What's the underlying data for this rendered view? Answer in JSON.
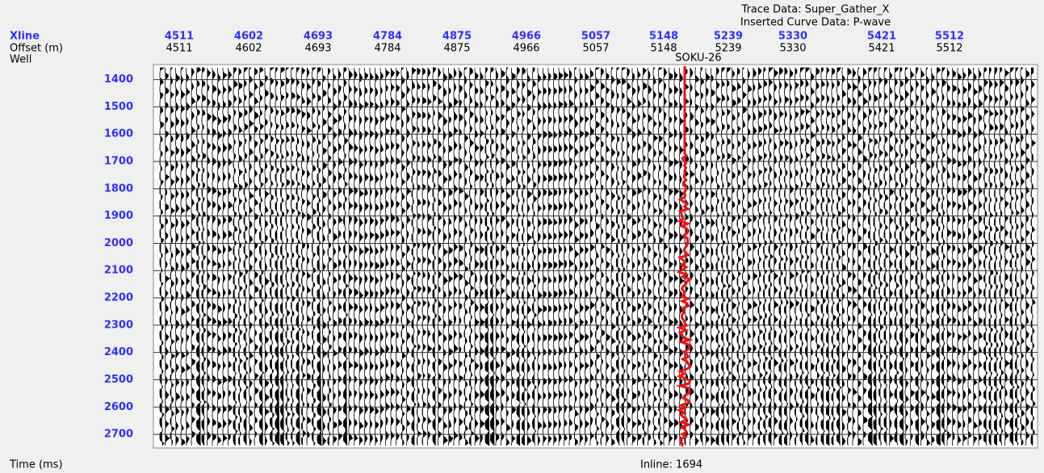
{
  "header": {
    "trace_data": "Trace Data: Super_Gather_X",
    "curve_data": "Inserted Curve Data:  P-wave"
  },
  "axes": {
    "xline_label": "Xline",
    "offset_label": "Offset (m)",
    "well_label": "Well",
    "xline_values": [
      4511,
      4602,
      4693,
      4784,
      4875,
      4966,
      5057,
      5148,
      5239,
      5330,
      5421,
      5512
    ],
    "offset_values": [
      4511,
      4602,
      4693,
      4784,
      4875,
      4966,
      5057,
      5148,
      5239,
      5330,
      5421,
      5512
    ],
    "well_name": "SOKU-26",
    "time_ticks": [
      1400,
      1500,
      1600,
      1700,
      1800,
      1900,
      2000,
      2100,
      2200,
      2300,
      2400,
      2500,
      2600,
      2700
    ],
    "time_lim": [
      1345,
      2750
    ],
    "time_label": "Time (ms)"
  },
  "footer": {
    "inline": "Inline: 1694"
  }
}
